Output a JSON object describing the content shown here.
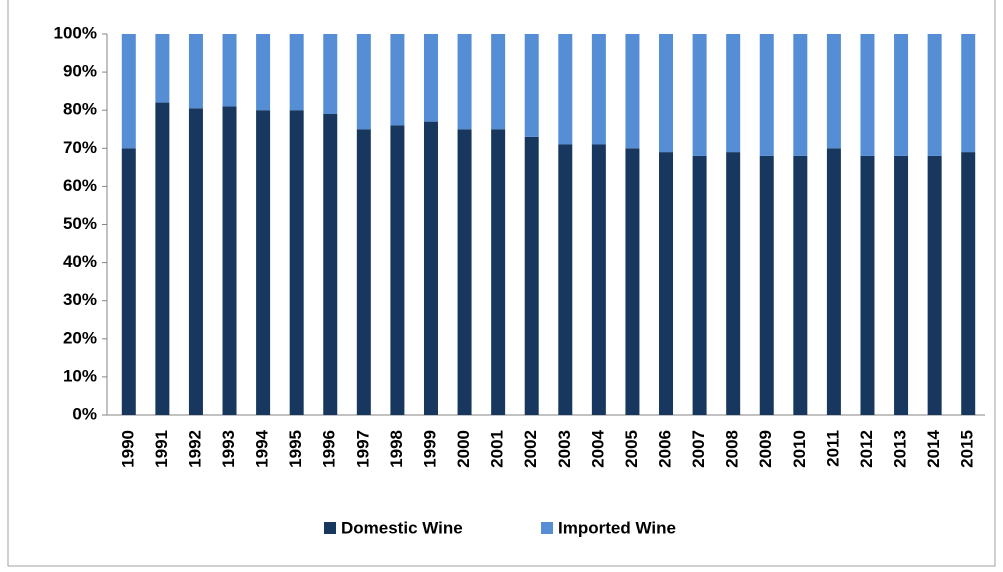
{
  "chart_data": {
    "type": "stacked_bar",
    "categories": [
      "1990",
      "1991",
      "1992",
      "1993",
      "1994",
      "1995",
      "1996",
      "1997",
      "1998",
      "1999",
      "2000",
      "2001",
      "2002",
      "2003",
      "2004",
      "2005",
      "2006",
      "2007",
      "2008",
      "2009",
      "2010",
      "2011",
      "2012",
      "2013",
      "2014",
      "2015"
    ],
    "series": [
      {
        "name": "Domestic Wine",
        "color": "#17375e",
        "values": [
          70,
          82,
          80.5,
          81,
          80,
          80,
          79,
          75,
          76,
          77,
          75,
          75,
          73,
          71,
          71,
          70,
          69,
          68,
          69,
          68,
          68,
          70,
          68,
          68,
          68,
          69
        ]
      },
      {
        "name": "Imported Wine",
        "color": "#558ed5",
        "values": [
          30,
          18,
          19.5,
          19,
          20,
          20,
          21,
          25,
          24,
          23,
          25,
          25,
          27,
          29,
          29,
          30,
          31,
          32,
          31,
          32,
          32,
          30,
          32,
          32,
          32,
          31
        ]
      }
    ],
    "ylim": [
      0,
      100
    ],
    "yticks": [
      {
        "value": 0,
        "label": "0%"
      },
      {
        "value": 10,
        "label": "10%"
      },
      {
        "value": 20,
        "label": "20%"
      },
      {
        "value": 30,
        "label": "30%"
      },
      {
        "value": 40,
        "label": "40%"
      },
      {
        "value": 50,
        "label": "50%"
      },
      {
        "value": 60,
        "label": "60%"
      },
      {
        "value": 70,
        "label": "70%"
      },
      {
        "value": 80,
        "label": "80%"
      },
      {
        "value": 90,
        "label": "90%"
      },
      {
        "value": 100,
        "label": "100%"
      }
    ],
    "legend": "bottom"
  }
}
